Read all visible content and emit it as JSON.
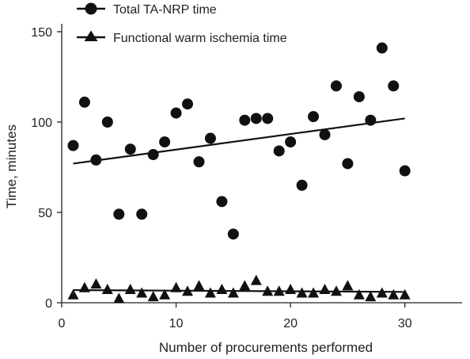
{
  "chart_data": {
    "type": "scatter",
    "title": "",
    "xlabel": "Number of procurements performed",
    "ylabel": "Time, minutes",
    "xlim": [
      0,
      35
    ],
    "ylim": [
      0,
      150
    ],
    "xticks": [
      0,
      10,
      20,
      30
    ],
    "yticks": [
      0,
      50,
      100,
      150
    ],
    "grid": false,
    "legend_position": "top-left",
    "series": [
      {
        "name": "Total TA-NRP time",
        "marker": "circle",
        "color": "#111111",
        "x": [
          1,
          2,
          3,
          4,
          5,
          6,
          7,
          8,
          9,
          10,
          11,
          12,
          13,
          14,
          15,
          16,
          17,
          18,
          19,
          20,
          21,
          22,
          23,
          24,
          25,
          26,
          27,
          28,
          29,
          30
        ],
        "y": [
          87,
          111,
          79,
          100,
          49,
          85,
          49,
          82,
          89,
          105,
          110,
          78,
          91,
          56,
          38,
          101,
          102,
          102,
          84,
          89,
          65,
          103,
          93,
          120,
          77,
          114,
          101,
          141,
          120,
          73
        ],
        "trendline": {
          "x": [
            1,
            30
          ],
          "y": [
            77,
            102
          ]
        }
      },
      {
        "name": "Functional warm ischemia time",
        "marker": "triangle",
        "color": "#111111",
        "x": [
          1,
          2,
          3,
          4,
          5,
          6,
          7,
          8,
          9,
          10,
          11,
          12,
          13,
          14,
          15,
          16,
          17,
          18,
          19,
          20,
          21,
          22,
          23,
          24,
          25,
          26,
          27,
          28,
          29,
          30
        ],
        "y": [
          4,
          8,
          10,
          7,
          2,
          7,
          5,
          3,
          4,
          8,
          6,
          9,
          5,
          7,
          5,
          9,
          12,
          6,
          6,
          7,
          5,
          5,
          7,
          6,
          9,
          4,
          3,
          5,
          4,
          4
        ],
        "trendline": {
          "x": [
            1,
            30
          ],
          "y": [
            7,
            6
          ]
        }
      }
    ]
  }
}
